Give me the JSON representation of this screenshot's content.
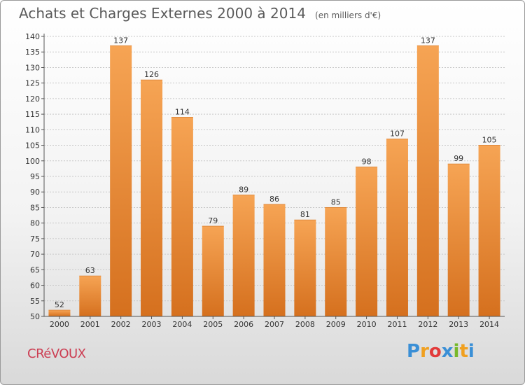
{
  "header": {
    "title": "Achats et Charges Externes 2000 à 2014",
    "subtitle": "(en milliers d'€)"
  },
  "footer": {
    "place": "CRéVOUX",
    "logo_letters": [
      "P",
      "r",
      "o",
      "x",
      "i",
      "t",
      "i"
    ],
    "logo_colors": [
      "#3a8fd6",
      "#f0a020",
      "#e23a3a",
      "#3a8fd6",
      "#77b82a",
      "#f0a020",
      "#3a8fd6"
    ]
  },
  "colors": {
    "bar_top": "#f6a454",
    "bar_bottom": "#d5701e",
    "grid": "#c8c8c8",
    "axis": "#555555",
    "text": "#333333"
  },
  "chart_data": {
    "type": "bar",
    "categories": [
      "2000",
      "2001",
      "2002",
      "2003",
      "2004",
      "2005",
      "2006",
      "2007",
      "2008",
      "2009",
      "2010",
      "2011",
      "2012",
      "2013",
      "2014"
    ],
    "values": [
      52,
      63,
      137,
      126,
      114,
      79,
      89,
      86,
      81,
      85,
      98,
      107,
      137,
      99,
      105
    ],
    "ylim": [
      50,
      140
    ],
    "yticks": [
      50,
      55,
      60,
      65,
      70,
      75,
      80,
      85,
      90,
      95,
      100,
      105,
      110,
      115,
      120,
      125,
      130,
      135,
      140
    ],
    "grid": true,
    "title": "Achats et Charges Externes 2000 à 2014",
    "xlabel": "",
    "ylabel": ""
  }
}
